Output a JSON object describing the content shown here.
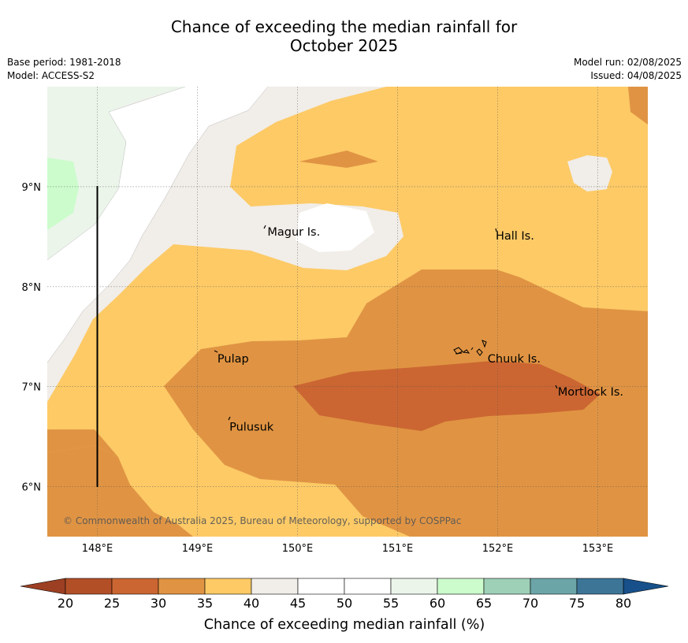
{
  "header": {
    "title_line1": "Chance of exceeding the median rainfall for",
    "title_line2": "October 2025",
    "base_period": "Base period: 1981-2018",
    "model": "Model: ACCESS-S2",
    "model_run": "Model run: 02/08/2025",
    "issued": "Issued: 04/08/2025"
  },
  "map": {
    "lon_ticks": [
      "148°E",
      "149°E",
      "150°E",
      "151°E",
      "152°E",
      "153°E"
    ],
    "lon_values": [
      148,
      149,
      150,
      151,
      152,
      153
    ],
    "lat_ticks": [
      "9°N",
      "8°N",
      "7°N",
      "6°N"
    ],
    "lat_values": [
      9,
      8,
      7,
      6
    ],
    "lon_range": [
      147.5,
      153.5
    ],
    "lat_range": [
      5.5,
      10.0
    ],
    "gridlines": true,
    "places": [
      {
        "name": "Magur Is.",
        "lon": 149.7,
        "lat": 8.55
      },
      {
        "name": "Hall Is.",
        "lon": 151.98,
        "lat": 8.51
      },
      {
        "name": "Pulap",
        "lon": 149.2,
        "lat": 7.28
      },
      {
        "name": "Chuuk Is.",
        "lon": 151.9,
        "lat": 7.28
      },
      {
        "name": "Mortlock Is.",
        "lon": 152.6,
        "lat": 6.95
      },
      {
        "name": "Pulusuk",
        "lon": 149.32,
        "lat": 6.6
      }
    ],
    "copyright": "© Commonwealth of Australia 2025, Bureau of Meteorology, supported by COSPPac"
  },
  "colorbar": {
    "label": "Chance of exceeding median rainfall (%)",
    "ticks": [
      "20",
      "25",
      "30",
      "35",
      "40",
      "45",
      "50",
      "55",
      "60",
      "65",
      "70",
      "75",
      "80"
    ],
    "colors": [
      "#b34f27",
      "#cb6632",
      "#e09443",
      "#fdca66",
      "#f1ede8",
      "#ffffff",
      "#ffffff",
      "#ebf5ea",
      "#ccfccc",
      "#9ed0b8",
      "#6ca5a8",
      "#3d7597"
    ],
    "under_color": "#9c3f22",
    "over_color": "#17508a"
  }
}
